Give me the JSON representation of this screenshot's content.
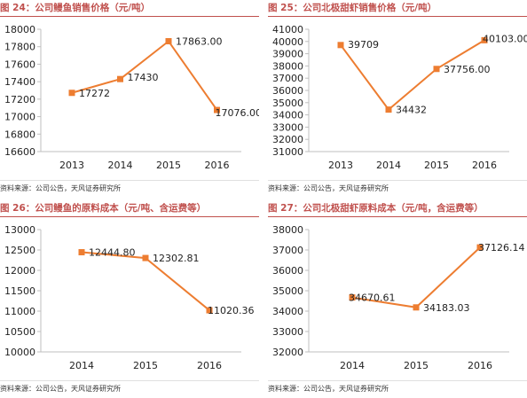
{
  "panels": [
    {
      "title": "图 24：公司鳗鱼销售价格（元/吨）",
      "source": "资料来源：公司公告，天风证券研究所"
    },
    {
      "title": "图 25：公司北极甜虾销售价格（元/吨）",
      "source": "资料来源：公司公告，天风证券研究所"
    },
    {
      "title": "图 26：公司鳗鱼的原料成本（元/吨、含运费等）",
      "source": "资料来源：公司公告，天风证券研究所"
    },
    {
      "title": "图 27：公司北极甜虾原料成本（元/吨，含运费等）",
      "source": "资料来源：公司公告，天风证券研究所"
    }
  ],
  "colors": {
    "line": "#ed7d31",
    "marker": "#ed7d31",
    "axis": "#bfbfbf",
    "title": "#c0504d"
  },
  "chart_data": [
    {
      "type": "line",
      "title": "图 24：公司鳗鱼销售价格（元/吨）",
      "categories": [
        "2013",
        "2014",
        "2015",
        "2016"
      ],
      "series": [
        {
          "values": [
            17272,
            17430,
            17863,
            17076
          ]
        }
      ],
      "data_labels": [
        "17272",
        "17430",
        "17863.00",
        "17076.00"
      ],
      "ylim": [
        16600,
        18000
      ],
      "yticks": [
        16600,
        16800,
        17000,
        17200,
        17400,
        17600,
        17800,
        18000
      ],
      "grid": false
    },
    {
      "type": "line",
      "title": "图 25：公司北极甜虾销售价格（元/吨）",
      "categories": [
        "2013",
        "2014",
        "2015",
        "2016"
      ],
      "series": [
        {
          "values": [
            39709,
            34432,
            37756,
            40103
          ]
        }
      ],
      "data_labels": [
        "39709",
        "34432",
        "37756.00",
        "40103.00"
      ],
      "ylim": [
        31000,
        41000
      ],
      "yticks": [
        31000,
        32000,
        33000,
        34000,
        35000,
        36000,
        37000,
        38000,
        39000,
        40000,
        41000
      ],
      "grid": false
    },
    {
      "type": "line",
      "title": "图 26：公司鳗鱼的原料成本（元/吨、含运费等）",
      "categories": [
        "2014",
        "2015",
        "2016"
      ],
      "series": [
        {
          "values": [
            12444.8,
            12302.81,
            11020.36
          ]
        }
      ],
      "data_labels": [
        "12444.80",
        "12302.81",
        "11020.36"
      ],
      "ylim": [
        10000,
        13000
      ],
      "yticks": [
        10000,
        10500,
        11000,
        11500,
        12000,
        12500,
        13000
      ],
      "grid": false
    },
    {
      "type": "line",
      "title": "图 27：公司北极甜虾原料成本（元/吨，含运费等）",
      "categories": [
        "2014",
        "2015",
        "2016"
      ],
      "series": [
        {
          "values": [
            34670.61,
            34183.03,
            37126.14
          ]
        }
      ],
      "data_labels": [
        "34670.61",
        "34183.03",
        "37126.14"
      ],
      "ylim": [
        32000,
        38000
      ],
      "yticks": [
        32000,
        33000,
        34000,
        35000,
        36000,
        37000,
        38000
      ],
      "grid": false
    }
  ]
}
